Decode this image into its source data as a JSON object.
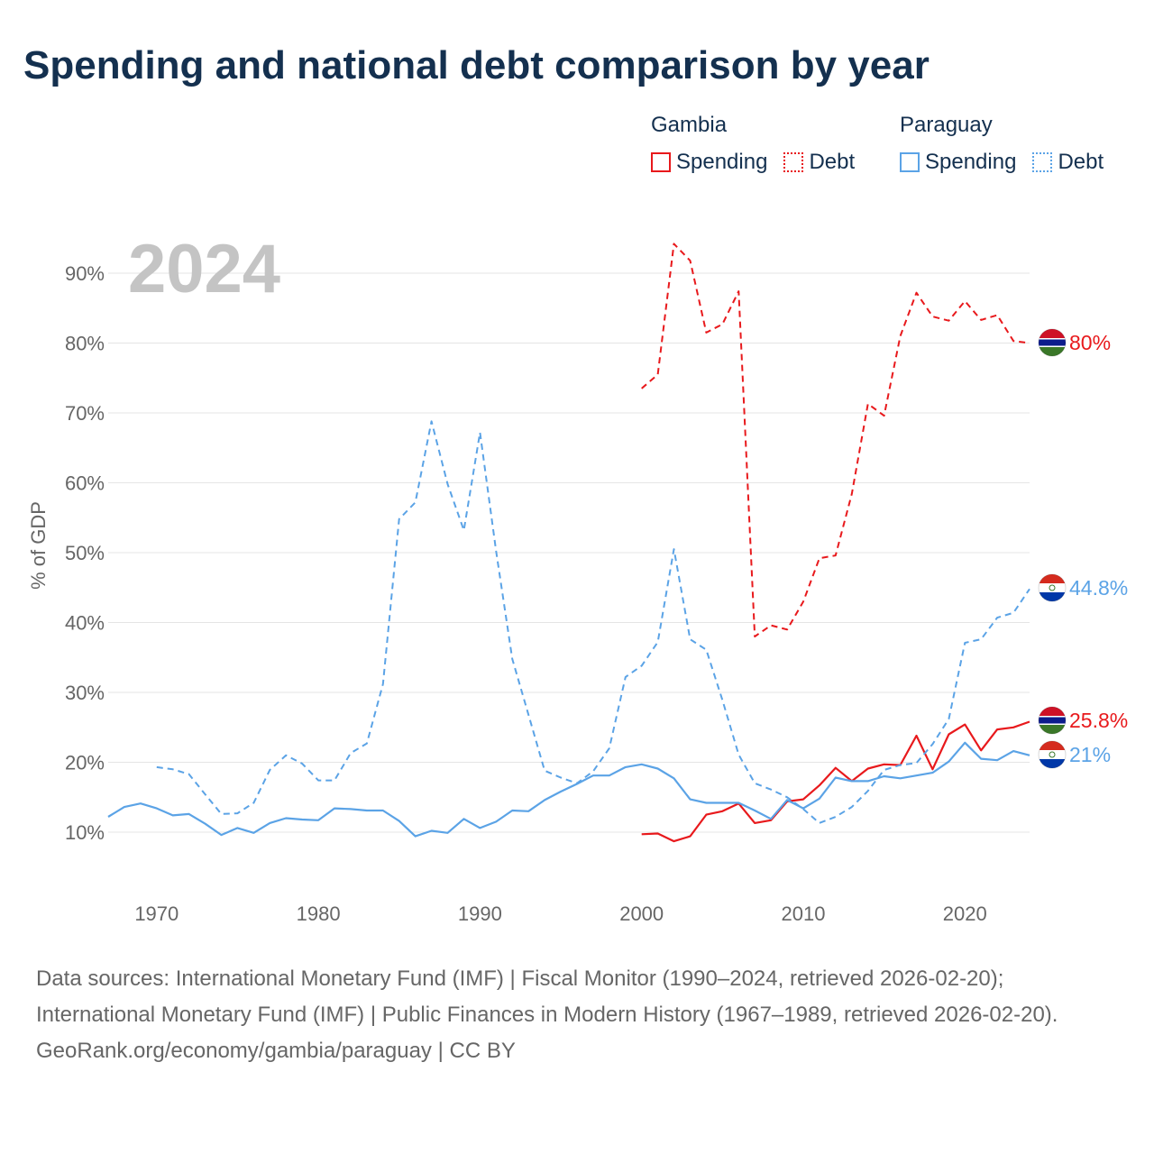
{
  "title": "Spending and national debt comparison by year",
  "legend": {
    "groups": [
      {
        "country": "Gambia",
        "spending_label": "Spending",
        "debt_label": "Debt"
      },
      {
        "country": "Paraguay",
        "spending_label": "Spending",
        "debt_label": "Debt"
      }
    ]
  },
  "colors": {
    "gambia": "#e8191c",
    "paraguay": "#5ba3e6",
    "grid": "#e5e5e5",
    "text": "#14304f",
    "axis_text": "#666666",
    "year_watermark": "#c4c4c4"
  },
  "chart_data": {
    "type": "line",
    "year_label": "2024",
    "ylabel": "% of GDP",
    "xlim": [
      1967,
      2024
    ],
    "ylim": [
      0,
      95
    ],
    "x_ticks": [
      1970,
      1980,
      1990,
      2000,
      2010,
      2020
    ],
    "y_ticks": [
      10,
      20,
      30,
      40,
      50,
      60,
      70,
      80,
      90
    ],
    "y_tick_labels": [
      "10%",
      "20%",
      "30%",
      "40%",
      "50%",
      "60%",
      "70%",
      "80%",
      "90%"
    ],
    "series": [
      {
        "name": "Gambia Spending",
        "country": "Gambia",
        "color": "#e8191c",
        "dash": false,
        "end_label": "25.8%",
        "flag": "gambia",
        "x": [
          2000,
          2001,
          2002,
          2003,
          2004,
          2005,
          2006,
          2007,
          2008,
          2009,
          2010,
          2011,
          2012,
          2013,
          2014,
          2015,
          2016,
          2017,
          2018,
          2019,
          2020,
          2021,
          2022,
          2023,
          2024
        ],
        "values": [
          9.7,
          9.8,
          8.7,
          9.4,
          12.5,
          13.0,
          14.1,
          11.3,
          11.7,
          14.4,
          14.7,
          16.7,
          19.2,
          17.3,
          19.1,
          19.7,
          19.6,
          23.8,
          19.0,
          24.0,
          25.4,
          21.7,
          24.7,
          25.0,
          25.8
        ]
      },
      {
        "name": "Gambia Debt",
        "country": "Gambia",
        "color": "#e8191c",
        "dash": true,
        "end_label": "80%",
        "flag": "gambia",
        "x": [
          2000,
          2001,
          2002,
          2003,
          2004,
          2005,
          2006,
          2007,
          2008,
          2009,
          2010,
          2011,
          2012,
          2013,
          2014,
          2015,
          2016,
          2017,
          2018,
          2019,
          2020,
          2021,
          2022,
          2023,
          2024
        ],
        "values": [
          73.5,
          75.5,
          94.2,
          91.8,
          81.5,
          82.7,
          87.4,
          38.0,
          39.6,
          39.0,
          43.0,
          49.2,
          49.6,
          58.4,
          71.3,
          69.6,
          81.0,
          87.2,
          83.8,
          83.2,
          86.0,
          83.3,
          84.0,
          80.3,
          80.0
        ]
      },
      {
        "name": "Paraguay Spending",
        "country": "Paraguay",
        "color": "#5ba3e6",
        "dash": false,
        "end_label": "21%",
        "flag": "paraguay",
        "x": [
          1967,
          1968,
          1969,
          1970,
          1971,
          1972,
          1973,
          1974,
          1975,
          1976,
          1977,
          1978,
          1979,
          1980,
          1981,
          1982,
          1983,
          1984,
          1985,
          1986,
          1987,
          1988,
          1989,
          1990,
          1991,
          1992,
          1993,
          1994,
          1995,
          1996,
          1997,
          1998,
          1999,
          2000,
          2001,
          2002,
          2003,
          2004,
          2005,
          2006,
          2007,
          2008,
          2009,
          2010,
          2011,
          2012,
          2013,
          2014,
          2015,
          2016,
          2017,
          2018,
          2019,
          2020,
          2021,
          2022,
          2023,
          2024
        ],
        "values": [
          12.2,
          13.6,
          14.1,
          13.4,
          12.4,
          12.6,
          11.2,
          9.6,
          10.6,
          9.9,
          11.3,
          12.0,
          11.8,
          11.7,
          13.4,
          13.3,
          13.1,
          13.1,
          11.6,
          9.4,
          10.2,
          9.9,
          11.9,
          10.6,
          11.5,
          13.1,
          13.0,
          14.6,
          15.8,
          16.9,
          18.1,
          18.1,
          19.3,
          19.7,
          19.1,
          17.7,
          14.7,
          14.2,
          14.2,
          14.2,
          13.1,
          11.9,
          14.6,
          13.4,
          14.8,
          17.8,
          17.3,
          17.3,
          18.0,
          17.7,
          18.1,
          18.5,
          20.1,
          22.8,
          20.5,
          20.3,
          21.6,
          21.0
        ]
      },
      {
        "name": "Paraguay Debt",
        "country": "Paraguay",
        "color": "#5ba3e6",
        "dash": true,
        "end_label": "44.8%",
        "flag": "paraguay",
        "x": [
          1970,
          1971,
          1972,
          1973,
          1974,
          1975,
          1976,
          1977,
          1978,
          1979,
          1980,
          1981,
          1982,
          1983,
          1984,
          1985,
          1986,
          1987,
          1988,
          1989,
          1990,
          1991,
          1992,
          1993,
          1994,
          1995,
          1996,
          1997,
          1998,
          1999,
          2000,
          2001,
          2002,
          2003,
          2004,
          2005,
          2006,
          2007,
          2008,
          2009,
          2010,
          2011,
          2012,
          2013,
          2014,
          2015,
          2016,
          2017,
          2018,
          2019,
          2020,
          2021,
          2022,
          2023,
          2024
        ],
        "values": [
          19.3,
          19.0,
          18.3,
          15.4,
          12.6,
          12.7,
          14.2,
          18.9,
          21.0,
          19.8,
          17.4,
          17.4,
          21.3,
          22.7,
          31.2,
          54.8,
          57.2,
          68.8,
          59.8,
          53.2,
          67.2,
          50.2,
          34.8,
          26.8,
          18.8,
          17.8,
          17.0,
          18.7,
          22.0,
          32.2,
          33.8,
          37.2,
          50.5,
          37.6,
          36.1,
          28.9,
          21.1,
          17.0,
          16.1,
          15.0,
          13.3,
          11.3,
          12.2,
          13.6,
          15.9,
          18.9,
          19.6,
          19.9,
          22.6,
          26.2,
          37.1,
          37.6,
          40.7,
          41.4,
          44.8
        ]
      }
    ]
  },
  "footer": {
    "sources": "Data sources: International Monetary Fund (IMF) | Fiscal Monitor (1990–2024, retrieved 2026-02-20); International Monetary Fund (IMF) | Public Finances in Modern History (1967–1989, retrieved 2026-02-20).",
    "credit": "GeoRank.org/economy/gambia/paraguay | CC BY"
  }
}
